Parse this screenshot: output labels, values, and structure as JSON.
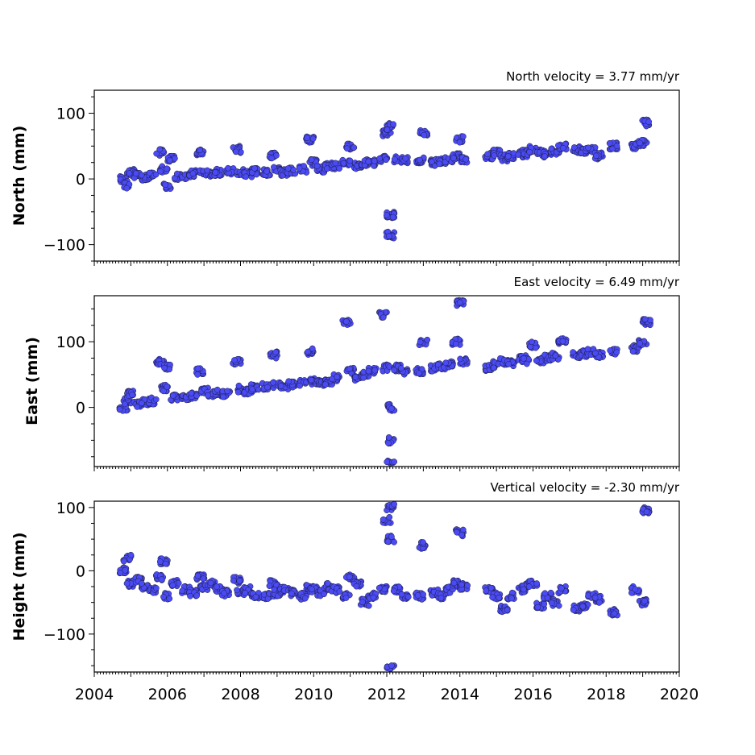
{
  "chart_data": [
    {
      "type": "scatter",
      "title": "North velocity = 3.77 mm/yr",
      "ylabel": "North (mm)",
      "xlabel": "",
      "xlim": [
        2004,
        2020
      ],
      "ylim": [
        -125,
        135
      ],
      "yticks": [
        -100,
        0,
        100
      ],
      "grid": false,
      "series": [
        {
          "x": [
            2004.8,
            2004.9,
            2005.0,
            2005.2,
            2005.4,
            2005.6,
            2005.8,
            2005.9,
            2006.0,
            2006.1,
            2006.3,
            2006.5,
            2006.7,
            2006.9,
            2007.0,
            2007.2,
            2007.4,
            2007.7,
            2007.9,
            2008.0,
            2008.2,
            2008.4,
            2008.7,
            2008.9,
            2009.0,
            2009.2,
            2009.4,
            2009.7,
            2009.9,
            2010.0,
            2010.2,
            2010.4,
            2010.6,
            2010.9,
            2011.0,
            2011.2,
            2011.4,
            2011.6,
            2011.9,
            2012.0,
            2012.1,
            2012.1,
            2012.1,
            2012.3,
            2012.5,
            2012.9,
            2013.0,
            2013.3,
            2013.5,
            2013.7,
            2013.9,
            2014.0,
            2014.1,
            2014.8,
            2015.0,
            2015.2,
            2015.4,
            2015.7,
            2015.8,
            2016.0,
            2016.2,
            2016.4,
            2016.6,
            2016.8,
            2017.2,
            2017.4,
            2017.6,
            2017.8,
            2018.2,
            2018.8,
            2019.0,
            2019.1
          ],
          "y": [
            0,
            -10,
            10,
            5,
            3,
            5,
            40,
            15,
            -10,
            30,
            3,
            5,
            8,
            40,
            10,
            8,
            10,
            12,
            45,
            10,
            8,
            12,
            10,
            35,
            15,
            10,
            12,
            15,
            60,
            25,
            15,
            20,
            20,
            25,
            50,
            20,
            25,
            25,
            30,
            70,
            -55,
            -85,
            80,
            30,
            28,
            28,
            70,
            25,
            28,
            30,
            35,
            60,
            30,
            35,
            40,
            32,
            35,
            40,
            38,
            45,
            40,
            38,
            42,
            50,
            45,
            42,
            45,
            35,
            50,
            50,
            55,
            85
          ]
        }
      ]
    },
    {
      "type": "scatter",
      "title": "East velocity = 6.49 mm/yr",
      "ylabel": "East (mm)",
      "xlabel": "",
      "xlim": [
        2004,
        2020
      ],
      "ylim": [
        -90,
        170
      ],
      "yticks": [
        0,
        100
      ],
      "grid": false,
      "series": [
        {
          "x": [
            2004.8,
            2004.9,
            2005.0,
            2005.2,
            2005.4,
            2005.6,
            2005.8,
            2005.9,
            2006.0,
            2006.2,
            2006.5,
            2006.7,
            2006.9,
            2007.0,
            2007.2,
            2007.4,
            2007.6,
            2007.9,
            2008.0,
            2008.2,
            2008.4,
            2008.7,
            2008.9,
            2009.0,
            2009.2,
            2009.4,
            2009.7,
            2009.9,
            2010.0,
            2010.2,
            2010.4,
            2010.6,
            2010.9,
            2011.0,
            2011.2,
            2011.4,
            2011.6,
            2011.9,
            2012.0,
            2012.1,
            2012.1,
            2012.1,
            2012.3,
            2012.5,
            2012.9,
            2013.0,
            2013.3,
            2013.5,
            2013.7,
            2013.9,
            2014.0,
            2014.1,
            2014.8,
            2015.0,
            2015.2,
            2015.4,
            2015.7,
            2015.8,
            2016.0,
            2016.2,
            2016.4,
            2016.6,
            2016.8,
            2017.2,
            2017.4,
            2017.6,
            2017.8,
            2018.2,
            2018.8,
            2019.0,
            2019.1
          ],
          "y": [
            0,
            10,
            20,
            5,
            8,
            10,
            70,
            30,
            60,
            15,
            15,
            18,
            55,
            25,
            20,
            22,
            20,
            70,
            28,
            25,
            30,
            32,
            80,
            35,
            32,
            35,
            38,
            85,
            40,
            38,
            40,
            45,
            130,
            55,
            45,
            50,
            55,
            140,
            60,
            0,
            -50,
            -85,
            60,
            55,
            55,
            100,
            60,
            62,
            65,
            100,
            160,
            70,
            60,
            65,
            70,
            68,
            75,
            70,
            95,
            72,
            75,
            78,
            100,
            80,
            82,
            85,
            80,
            85,
            90,
            100,
            130
          ]
        }
      ]
    },
    {
      "type": "scatter",
      "title": "Vertical velocity = -2.30 mm/yr",
      "ylabel": "Height (mm)",
      "xlabel": "",
      "xlim": [
        2004,
        2020
      ],
      "ylim": [
        -160,
        110
      ],
      "yticks": [
        -100,
        0,
        100
      ],
      "xticks": [
        2004,
        2006,
        2008,
        2010,
        2012,
        2014,
        2016,
        2018,
        2020
      ],
      "grid": false,
      "series": [
        {
          "x": [
            2004.8,
            2004.9,
            2005.0,
            2005.2,
            2005.4,
            2005.6,
            2005.8,
            2005.9,
            2006.0,
            2006.2,
            2006.5,
            2006.7,
            2006.9,
            2007.0,
            2007.2,
            2007.4,
            2007.6,
            2007.9,
            2008.0,
            2008.2,
            2008.4,
            2008.7,
            2008.9,
            2009.0,
            2009.2,
            2009.4,
            2009.7,
            2009.9,
            2010.0,
            2010.2,
            2010.4,
            2010.6,
            2010.9,
            2011.0,
            2011.2,
            2011.4,
            2011.6,
            2011.9,
            2012.0,
            2012.1,
            2012.1,
            2012.1,
            2012.3,
            2012.5,
            2012.9,
            2013.0,
            2013.3,
            2013.5,
            2013.7,
            2013.9,
            2014.0,
            2014.1,
            2014.8,
            2015.0,
            2015.2,
            2015.4,
            2015.7,
            2015.8,
            2016.0,
            2016.2,
            2016.4,
            2016.6,
            2016.8,
            2017.2,
            2017.4,
            2017.6,
            2017.8,
            2018.2,
            2018.8,
            2019.0,
            2019.1
          ],
          "y": [
            0,
            20,
            -20,
            -15,
            -25,
            -30,
            -10,
            15,
            -40,
            -20,
            -30,
            -35,
            -10,
            -25,
            -20,
            -30,
            -35,
            -15,
            -35,
            -30,
            -40,
            -40,
            -20,
            -35,
            -30,
            -35,
            -40,
            -25,
            -30,
            -35,
            -25,
            -30,
            -40,
            -10,
            -20,
            -50,
            -40,
            -30,
            80,
            100,
            -155,
            50,
            -30,
            -40,
            -40,
            40,
            -35,
            -40,
            -30,
            -20,
            60,
            -25,
            -30,
            -40,
            -60,
            -40,
            -30,
            -25,
            -20,
            -55,
            -40,
            -50,
            -30,
            -60,
            -55,
            -40,
            -45,
            -65,
            -30,
            -50,
            95
          ]
        }
      ]
    }
  ],
  "xaxis": {
    "ticklabels": [
      "2004",
      "2006",
      "2008",
      "2010",
      "2012",
      "2014",
      "2016",
      "2018",
      "2020"
    ]
  },
  "style": {
    "marker_fill": "#4b4bf5",
    "marker_edge": "#1a1a40"
  }
}
